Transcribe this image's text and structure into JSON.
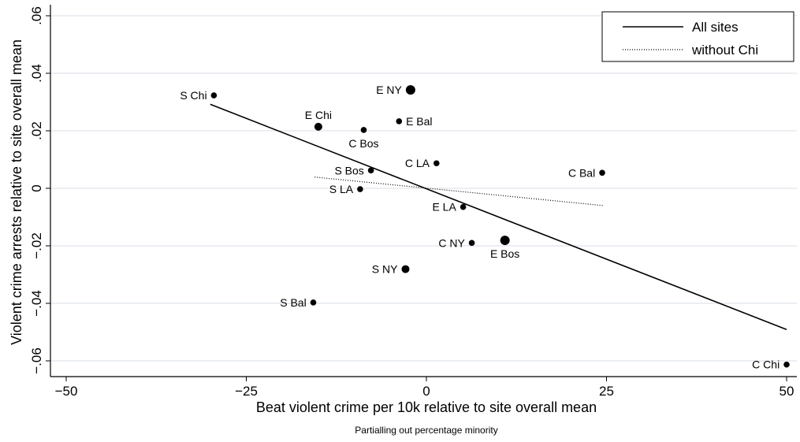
{
  "chart_data": {
    "type": "scatter",
    "xlabel": "Beat violent crime per 10k relative to site overall mean",
    "ylabel": "Violent crime arrests relative to site overall mean",
    "note": "Partialling out percentage minority",
    "xlim": [
      -50,
      50
    ],
    "ylim": [
      -0.062,
      0.062
    ],
    "x_ticks": [
      -50,
      -25,
      0,
      25,
      50
    ],
    "x_tick_labels": [
      "−50",
      "−25",
      "0",
      "25",
      "50"
    ],
    "y_ticks": [
      -0.06,
      -0.04,
      -0.02,
      0,
      0.02,
      0.04,
      0.06
    ],
    "y_tick_labels": [
      "−.06",
      "−.04",
      "−.02",
      "0",
      ".02",
      ".04",
      ".06"
    ],
    "grid": "horizontal",
    "legend": {
      "position": "top-right",
      "entries": [
        {
          "label": "All sites",
          "style": "solid"
        },
        {
          "label": "without Chi",
          "style": "dotted"
        }
      ]
    },
    "points": [
      {
        "label": "S Chi",
        "x": -29.5,
        "y": 0.0323,
        "size": "small",
        "label_side": "left"
      },
      {
        "label": "E NY",
        "x": -2.2,
        "y": 0.0342,
        "size": "large",
        "label_side": "left"
      },
      {
        "label": "E Chi",
        "x": -15.0,
        "y": 0.0214,
        "size": "medium",
        "label_side": "above"
      },
      {
        "label": "E Bal",
        "x": -3.8,
        "y": 0.0233,
        "size": "small",
        "label_side": "right"
      },
      {
        "label": "C Bos",
        "x": -8.7,
        "y": 0.0203,
        "size": "small",
        "label_side": "below"
      },
      {
        "label": "C LA",
        "x": 1.4,
        "y": 0.0087,
        "size": "small",
        "label_side": "left"
      },
      {
        "label": "C Bal",
        "x": 24.4,
        "y": 0.0054,
        "size": "small",
        "label_side": "left"
      },
      {
        "label": "S Bos",
        "x": -7.7,
        "y": 0.0062,
        "size": "small",
        "label_side": "left"
      },
      {
        "label": "S LA",
        "x": -9.2,
        "y": -0.0003,
        "size": "small",
        "label_side": "left"
      },
      {
        "label": "E LA",
        "x": 5.1,
        "y": -0.0065,
        "size": "small",
        "label_side": "left"
      },
      {
        "label": "C NY",
        "x": 6.3,
        "y": -0.019,
        "size": "small",
        "label_side": "left"
      },
      {
        "label": "E Bos",
        "x": 10.9,
        "y": -0.0181,
        "size": "large",
        "label_side": "below"
      },
      {
        "label": "S NY",
        "x": -2.9,
        "y": -0.0281,
        "size": "medium",
        "label_side": "left"
      },
      {
        "label": "S Bal",
        "x": -15.7,
        "y": -0.0397,
        "size": "small",
        "label_side": "left"
      },
      {
        "label": "C Chi",
        "x": 50.0,
        "y": -0.0613,
        "size": "small",
        "label_side": "left"
      }
    ],
    "series": [
      {
        "name": "All sites",
        "style": "solid",
        "x": [
          -30,
          50
        ],
        "y": [
          0.0292,
          -0.0491
        ]
      },
      {
        "name": "without Chi",
        "style": "dotted",
        "x": [
          -15.5,
          24.5
        ],
        "y": [
          0.0039,
          -0.006
        ]
      }
    ]
  }
}
